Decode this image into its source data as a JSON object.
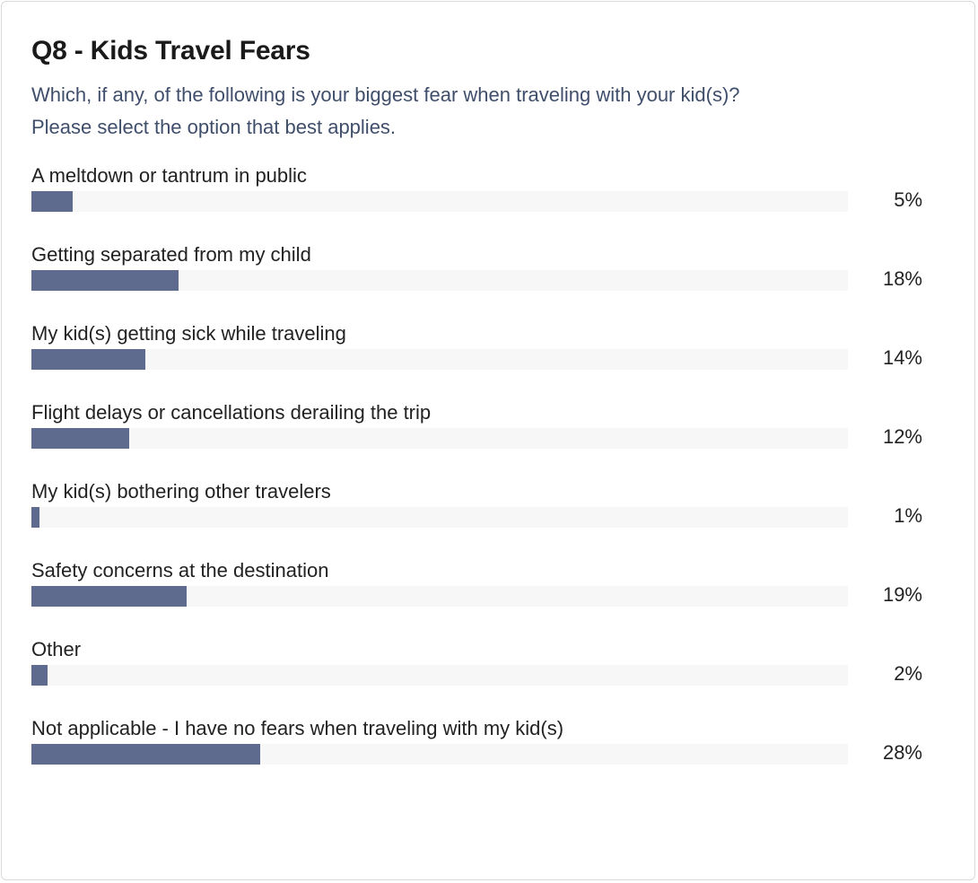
{
  "title": "Q8 - Kids Travel Fears",
  "subtitle": "Which, if any, of the following is your biggest fear when traveling with your kid(s)? Please select the option that best applies.",
  "colors": {
    "bar": "#5e6b8e",
    "track": "#f7f7f8",
    "subtitle": "#3f4e6b"
  },
  "chart_data": {
    "type": "bar",
    "orientation": "horizontal",
    "title": "Q8 - Kids Travel Fears",
    "subtitle": "Which, if any, of the following is your biggest fear when traveling with your kid(s)? Please select the option that best applies.",
    "xlim": [
      0,
      100
    ],
    "categories": [
      "A meltdown or tantrum in public",
      "Getting separated from my child",
      "My kid(s) getting sick while traveling",
      "Flight delays or cancellations derailing the trip",
      "My kid(s) bothering other travelers",
      "Safety concerns at the destination",
      "Other",
      "Not applicable - I have no fears when traveling with my kid(s)"
    ],
    "values": [
      5,
      18,
      14,
      12,
      1,
      19,
      2,
      28
    ],
    "value_labels": [
      "5%",
      "18%",
      "14%",
      "12%",
      "1%",
      "19%",
      "2%",
      "28%"
    ]
  }
}
